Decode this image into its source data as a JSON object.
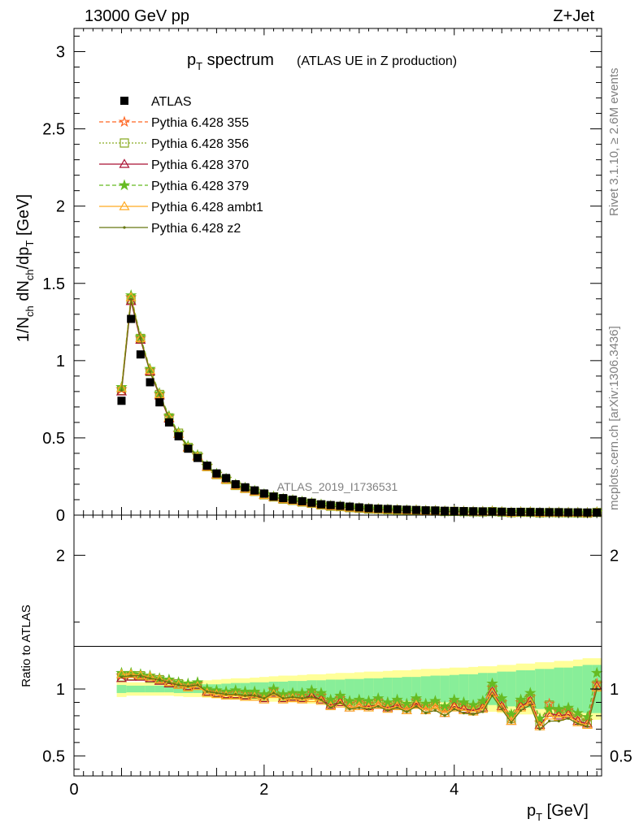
{
  "header": {
    "energy_label": "13000 GeV pp",
    "process_label": "Z+Jet"
  },
  "side_text": {
    "rivet": "Rivet 3.1.10, ≥ 2.6M events",
    "mcplots": "mcplots.cern.ch [arXiv:1306.3436]"
  },
  "chart_data": [
    {
      "type": "line",
      "title": "p_T spectrum",
      "subtitle": "(ATLAS UE in Z production)",
      "watermark": "ATLAS_2019_I1736531",
      "ylabel": "1/N_ch dN_ch/dp_T [GeV]",
      "xlim": [
        0,
        5.55
      ],
      "ylim": [
        0,
        3.15
      ],
      "yticks": [
        "0",
        "0.5",
        "1",
        "1.5",
        "2",
        "2.5",
        "3"
      ],
      "legend_position": "top-left",
      "x": [
        0.5,
        0.6,
        0.7,
        0.8,
        0.9,
        1.0,
        1.1,
        1.2,
        1.3,
        1.4,
        1.5,
        1.6,
        1.7,
        1.8,
        1.9,
        2.0,
        2.1,
        2.2,
        2.3,
        2.4,
        2.5,
        2.6,
        2.7,
        2.8,
        2.9,
        3.0,
        3.1,
        3.2,
        3.3,
        3.4,
        3.5,
        3.6,
        3.7,
        3.8,
        3.9,
        4.0,
        4.1,
        4.2,
        4.3,
        4.4,
        4.5,
        4.6,
        4.7,
        4.8,
        4.9,
        5.0,
        5.1,
        5.2,
        5.3,
        5.4,
        5.5
      ],
      "data": {
        "name": "ATLAS",
        "values": [
          0.74,
          1.27,
          1.04,
          0.86,
          0.73,
          0.6,
          0.51,
          0.43,
          0.37,
          0.32,
          0.27,
          0.24,
          0.2,
          0.18,
          0.16,
          0.14,
          0.12,
          0.11,
          0.1,
          0.09,
          0.08,
          0.07,
          0.065,
          0.06,
          0.055,
          0.05,
          0.045,
          0.042,
          0.04,
          0.037,
          0.035,
          0.033,
          0.031,
          0.03,
          0.028,
          0.027,
          0.026,
          0.025,
          0.024,
          0.023,
          0.022,
          0.021,
          0.021,
          0.02,
          0.02,
          0.019,
          0.019,
          0.018,
          0.018,
          0.017,
          0.017
        ]
      },
      "series": [
        {
          "name": "Pythia 6.428 355",
          "color": "#ff6622",
          "dash": "5,3",
          "marker": "star-open"
        },
        {
          "name": "Pythia 6.428 356",
          "color": "#88aa22",
          "dash": "2,2",
          "marker": "square-open"
        },
        {
          "name": "Pythia 6.428 370",
          "color": "#aa1133",
          "dash": "",
          "marker": "triangle-open"
        },
        {
          "name": "Pythia 6.428 379",
          "color": "#66bb22",
          "dash": "5,3",
          "marker": "star-filled"
        },
        {
          "name": "Pythia 6.428 ambt1",
          "color": "#ffaa22",
          "dash": "",
          "marker": "triangle-open"
        },
        {
          "name": "Pythia 6.428 z2",
          "color": "#667711",
          "dash": "",
          "marker": "dot"
        }
      ]
    },
    {
      "type": "line",
      "ylabel": "Ratio to ATLAS",
      "xlabel": "p_T [GeV]",
      "xlim": [
        0,
        5.55
      ],
      "ylim": [
        0.35,
        2.3
      ],
      "xticks": [
        "0",
        "2",
        "4"
      ],
      "yticks": [
        "0.5",
        "1",
        "2"
      ],
      "x": [
        0.5,
        0.6,
        0.7,
        0.8,
        0.9,
        1.0,
        1.1,
        1.2,
        1.3,
        1.4,
        1.5,
        1.6,
        1.7,
        1.8,
        1.9,
        2.0,
        2.1,
        2.2,
        2.3,
        2.4,
        2.5,
        2.6,
        2.7,
        2.8,
        2.9,
        3.0,
        3.1,
        3.2,
        3.3,
        3.4,
        3.5,
        3.6,
        3.7,
        3.8,
        3.9,
        4.0,
        4.1,
        4.2,
        4.3,
        4.4,
        4.5,
        4.6,
        4.7,
        4.8,
        4.9,
        5.0,
        5.1,
        5.2,
        5.3,
        5.4,
        5.5
      ],
      "stat_band_half": [
        0.03,
        0.025,
        0.025,
        0.025,
        0.025,
        0.025,
        0.03,
        0.03,
        0.03,
        0.035,
        0.035,
        0.04,
        0.045,
        0.045,
        0.05,
        0.05,
        0.055,
        0.055,
        0.06,
        0.06,
        0.065,
        0.065,
        0.07,
        0.07,
        0.075,
        0.075,
        0.08,
        0.08,
        0.085,
        0.085,
        0.09,
        0.09,
        0.095,
        0.1,
        0.1,
        0.105,
        0.11,
        0.11,
        0.12,
        0.12,
        0.13,
        0.13,
        0.14,
        0.14,
        0.15,
        0.15,
        0.16,
        0.16,
        0.17,
        0.18,
        0.18
      ],
      "total_band_half": [
        0.06,
        0.05,
        0.05,
        0.05,
        0.05,
        0.05,
        0.055,
        0.06,
        0.06,
        0.065,
        0.07,
        0.075,
        0.08,
        0.08,
        0.085,
        0.09,
        0.095,
        0.1,
        0.1,
        0.105,
        0.11,
        0.11,
        0.115,
        0.12,
        0.12,
        0.125,
        0.13,
        0.13,
        0.135,
        0.14,
        0.14,
        0.145,
        0.15,
        0.15,
        0.155,
        0.16,
        0.16,
        0.165,
        0.17,
        0.17,
        0.18,
        0.18,
        0.19,
        0.19,
        0.2,
        0.2,
        0.21,
        0.21,
        0.22,
        0.23,
        0.23
      ],
      "series": [
        {
          "name": "Pythia 6.428 355",
          "values": [
            1.1,
            1.11,
            1.1,
            1.09,
            1.07,
            1.06,
            1.04,
            1.03,
            1.04,
            0.99,
            0.98,
            0.97,
            0.98,
            0.97,
            0.97,
            0.95,
            0.99,
            0.95,
            0.96,
            0.95,
            0.97,
            0.95,
            0.9,
            0.93,
            0.89,
            0.9,
            0.89,
            0.91,
            0.88,
            0.9,
            0.87,
            0.91,
            0.87,
            0.89,
            0.85,
            0.9,
            0.88,
            0.86,
            0.89,
            1.01,
            0.9,
            0.79,
            0.9,
            0.94,
            0.75,
            0.89,
            0.83,
            0.84,
            0.79,
            0.76,
            1.04
          ]
        },
        {
          "name": "Pythia 6.428 356",
          "values": [
            1.09,
            1.1,
            1.1,
            1.08,
            1.07,
            1.05,
            1.04,
            1.02,
            1.03,
            0.98,
            0.97,
            0.96,
            0.96,
            0.96,
            0.96,
            0.94,
            0.98,
            0.94,
            0.95,
            0.94,
            0.96,
            0.94,
            0.89,
            0.92,
            0.88,
            0.89,
            0.88,
            0.9,
            0.87,
            0.89,
            0.86,
            0.9,
            0.86,
            0.88,
            0.84,
            0.89,
            0.87,
            0.85,
            0.88,
            1.0,
            0.89,
            0.78,
            0.89,
            0.93,
            0.74,
            0.88,
            0.82,
            0.83,
            0.78,
            0.75,
            1.03
          ]
        },
        {
          "name": "Pythia 6.428 370",
          "values": [
            1.08,
            1.09,
            1.09,
            1.08,
            1.06,
            1.04,
            1.03,
            1.02,
            1.03,
            0.98,
            0.97,
            0.96,
            0.96,
            0.95,
            0.96,
            0.93,
            0.97,
            0.93,
            0.94,
            0.93,
            0.95,
            0.92,
            0.88,
            0.9,
            0.86,
            0.87,
            0.87,
            0.88,
            0.86,
            0.88,
            0.84,
            0.89,
            0.84,
            0.86,
            0.82,
            0.87,
            0.85,
            0.84,
            0.86,
            0.98,
            0.87,
            0.76,
            0.87,
            0.91,
            0.73,
            0.82,
            0.8,
            0.81,
            0.76,
            0.74,
            1.02
          ]
        },
        {
          "name": "Pythia 6.428 379",
          "values": [
            1.12,
            1.12,
            1.11,
            1.1,
            1.08,
            1.07,
            1.05,
            1.04,
            1.05,
            1.0,
            0.99,
            0.98,
            0.99,
            0.98,
            0.98,
            0.96,
            1.0,
            0.96,
            0.97,
            0.97,
            0.99,
            0.97,
            0.92,
            0.95,
            0.91,
            0.92,
            0.91,
            0.93,
            0.9,
            0.92,
            0.89,
            0.93,
            0.89,
            0.91,
            0.87,
            0.92,
            0.9,
            0.88,
            0.91,
            1.04,
            0.93,
            0.81,
            0.92,
            0.97,
            0.78,
            0.85,
            0.85,
            0.86,
            0.82,
            0.79,
            1.12
          ]
        },
        {
          "name": "Pythia 6.428 ambt1",
          "values": [
            1.11,
            1.11,
            1.1,
            1.09,
            1.07,
            1.05,
            1.03,
            1.01,
            1.02,
            0.97,
            0.96,
            0.95,
            0.95,
            0.94,
            0.94,
            0.92,
            0.96,
            0.92,
            0.93,
            0.92,
            0.93,
            0.91,
            0.87,
            0.89,
            0.86,
            0.87,
            0.86,
            0.88,
            0.85,
            0.87,
            0.84,
            0.88,
            0.84,
            0.86,
            0.82,
            0.86,
            0.84,
            0.83,
            0.85,
            0.97,
            0.86,
            0.76,
            0.86,
            0.9,
            0.72,
            0.8,
            0.79,
            0.8,
            0.75,
            0.73,
            1.01
          ]
        },
        {
          "name": "Pythia 6.428 z2",
          "values": [
            1.09,
            1.1,
            1.1,
            1.08,
            1.07,
            1.05,
            1.03,
            1.02,
            1.03,
            0.98,
            0.97,
            0.96,
            0.96,
            0.95,
            0.95,
            0.93,
            0.97,
            0.93,
            0.94,
            0.93,
            0.94,
            0.92,
            0.86,
            0.9,
            0.85,
            0.86,
            0.85,
            0.87,
            0.84,
            0.86,
            0.83,
            0.87,
            0.82,
            0.84,
            0.8,
            0.85,
            0.82,
            0.81,
            0.83,
            0.95,
            0.85,
            0.75,
            0.84,
            0.88,
            0.7,
            0.76,
            0.76,
            0.78,
            0.74,
            0.72,
            1.0
          ]
        }
      ]
    }
  ]
}
